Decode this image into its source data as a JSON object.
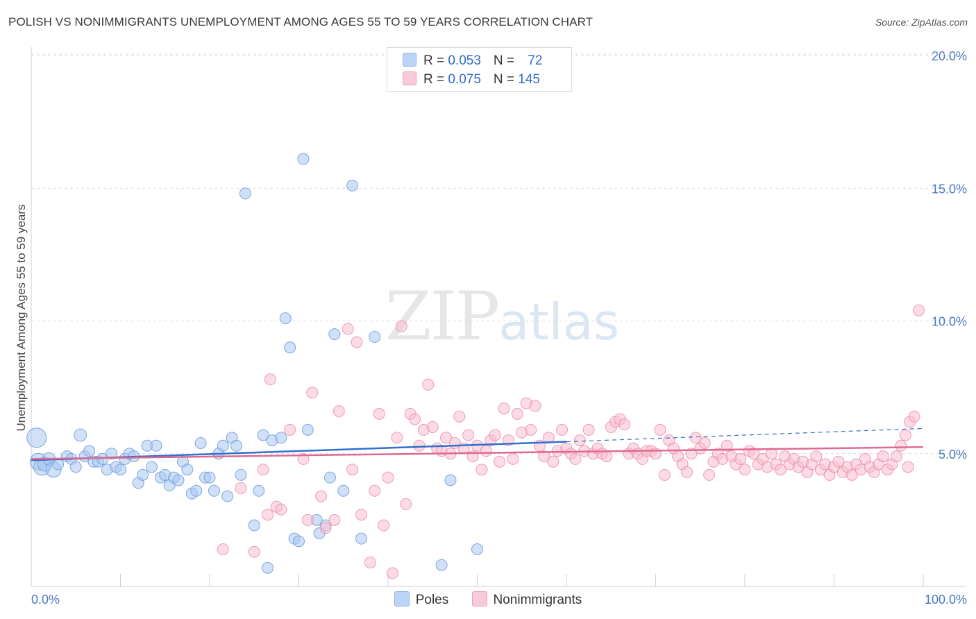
{
  "title": "POLISH VS NONIMMIGRANTS UNEMPLOYMENT AMONG AGES 55 TO 59 YEARS CORRELATION CHART",
  "source": "Source: ZipAtlas.com",
  "watermark": {
    "zip": "ZIP",
    "atlas": "atlas"
  },
  "legend": {
    "rows": [
      {
        "r_label": "R = ",
        "r_value": "0.053",
        "n_label": "N = ",
        "n_value": "72",
        "color": "#9dc0ef"
      },
      {
        "r_label": "R = ",
        "r_value": "0.075",
        "n_label": "N = ",
        "n_value": "145",
        "color": "#f4a9c0"
      }
    ]
  },
  "bottom_legend": [
    {
      "label": "Poles",
      "color": "#9dc0ef"
    },
    {
      "label": "Nonimmigrants",
      "color": "#f4a9c0"
    }
  ],
  "chart_data": {
    "type": "scatter",
    "ylabel": "Unemployment Among Ages 55 to 59 years",
    "xlabel": "",
    "x_tick_labels": [
      "0.0%",
      "100.0%"
    ],
    "y_tick_labels": [
      "5.0%",
      "10.0%",
      "15.0%",
      "20.0%"
    ],
    "y_ticks": [
      5,
      10,
      15,
      20
    ],
    "xlim": [
      0,
      100
    ],
    "ylim": [
      0,
      20.5
    ],
    "series": [
      {
        "name": "Poles",
        "color": "#6f9fe0",
        "fill": "#a9c7f1",
        "trend": {
          "x0": 0,
          "y0": 4.75,
          "x1": 60,
          "y1": 5.45,
          "dash_to_x": 100,
          "dash_to_y": 5.95,
          "color": "#2f6fd0"
        },
        "points": [
          [
            0.6,
            5.6,
            14
          ],
          [
            0.8,
            4.7,
            12
          ],
          [
            1.2,
            4.5,
            12
          ],
          [
            1.5,
            4.6,
            10
          ],
          [
            2,
            4.8,
            9
          ],
          [
            2.5,
            4.4,
            11
          ],
          [
            3,
            4.6,
            8
          ],
          [
            4,
            4.9,
            8
          ],
          [
            4.5,
            4.8,
            8
          ],
          [
            5,
            4.5,
            8
          ],
          [
            5.5,
            5.7,
            9
          ],
          [
            6,
            4.9,
            8
          ],
          [
            6.5,
            5.1,
            8
          ],
          [
            7,
            4.7,
            8
          ],
          [
            7.5,
            4.7,
            8
          ],
          [
            8,
            4.8,
            8
          ],
          [
            8.5,
            4.4,
            8
          ],
          [
            9,
            5.0,
            8
          ],
          [
            9.5,
            4.5,
            8
          ],
          [
            10,
            4.4,
            8
          ],
          [
            10.5,
            4.8,
            8
          ],
          [
            11,
            5.0,
            8
          ],
          [
            11.5,
            4.9,
            8
          ],
          [
            12,
            3.9,
            8
          ],
          [
            12.5,
            4.2,
            8
          ],
          [
            13,
            5.3,
            8
          ],
          [
            13.5,
            4.5,
            8
          ],
          [
            14,
            5.3,
            8
          ],
          [
            14.5,
            4.1,
            8
          ],
          [
            15,
            4.2,
            8
          ],
          [
            15.5,
            3.8,
            8
          ],
          [
            16,
            4.1,
            8
          ],
          [
            16.5,
            4.0,
            8
          ],
          [
            17,
            4.7,
            8
          ],
          [
            17.5,
            4.4,
            8
          ],
          [
            18,
            3.5,
            8
          ],
          [
            18.5,
            3.6,
            8
          ],
          [
            19,
            5.4,
            8
          ],
          [
            19.5,
            4.1,
            8
          ],
          [
            20,
            4.1,
            8
          ],
          [
            20.5,
            3.6,
            8
          ],
          [
            21,
            5.0,
            8
          ],
          [
            21.5,
            5.3,
            8
          ],
          [
            22,
            3.4,
            8
          ],
          [
            22.5,
            5.6,
            8
          ],
          [
            23,
            5.3,
            8
          ],
          [
            23.5,
            4.2,
            8
          ],
          [
            24,
            14.8,
            8
          ],
          [
            25,
            2.3,
            8
          ],
          [
            25.5,
            3.6,
            8
          ],
          [
            26,
            5.7,
            8
          ],
          [
            26.5,
            0.7,
            8
          ],
          [
            27,
            5.5,
            8
          ],
          [
            28,
            5.6,
            8
          ],
          [
            28.5,
            10.1,
            8
          ],
          [
            29,
            9.0,
            8
          ],
          [
            29.5,
            1.8,
            8
          ],
          [
            30,
            1.7,
            8
          ],
          [
            30.5,
            16.1,
            8
          ],
          [
            31,
            5.9,
            8
          ],
          [
            32,
            2.5,
            8
          ],
          [
            32.3,
            2.0,
            8
          ],
          [
            33,
            2.3,
            8
          ],
          [
            33.5,
            4.1,
            8
          ],
          [
            34,
            9.5,
            8
          ],
          [
            35,
            3.6,
            8
          ],
          [
            36,
            15.1,
            8
          ],
          [
            37,
            1.8,
            8
          ],
          [
            38.5,
            9.4,
            8
          ],
          [
            46,
            0.8,
            8
          ],
          [
            47,
            4.0,
            8
          ],
          [
            50,
            1.4,
            8
          ]
        ]
      },
      {
        "name": "Nonimmigrants",
        "color": "#ee8fae",
        "fill": "#f7bfd0",
        "trend": {
          "x0": 0,
          "y0": 4.8,
          "x1": 100,
          "y1": 5.25,
          "color": "#e0698f"
        },
        "points": [
          [
            21.5,
            1.4,
            8
          ],
          [
            23.5,
            3.7,
            8
          ],
          [
            25,
            1.3,
            8
          ],
          [
            26,
            4.4,
            8
          ],
          [
            26.5,
            2.7,
            8
          ],
          [
            26.8,
            7.8,
            8
          ],
          [
            27.5,
            3.0,
            8
          ],
          [
            28,
            2.9,
            8
          ],
          [
            29,
            5.9,
            8
          ],
          [
            30.5,
            4.8,
            8
          ],
          [
            31,
            2.5,
            8
          ],
          [
            31.5,
            7.3,
            8
          ],
          [
            32.5,
            3.4,
            8
          ],
          [
            33,
            2.2,
            8
          ],
          [
            34,
            2.5,
            8
          ],
          [
            34.5,
            6.6,
            8
          ],
          [
            35.5,
            9.7,
            8
          ],
          [
            36,
            4.4,
            8
          ],
          [
            36.5,
            9.2,
            8
          ],
          [
            37,
            2.7,
            8
          ],
          [
            38,
            0.9,
            8
          ],
          [
            38.5,
            3.6,
            8
          ],
          [
            39,
            6.5,
            8
          ],
          [
            39.5,
            2.3,
            8
          ],
          [
            40,
            4.1,
            8
          ],
          [
            40.5,
            0.5,
            8
          ],
          [
            41,
            5.6,
            8
          ],
          [
            41.5,
            9.8,
            8
          ],
          [
            42,
            3.1,
            8
          ],
          [
            42.5,
            6.5,
            8
          ],
          [
            43,
            6.3,
            8
          ],
          [
            43.5,
            5.3,
            8
          ],
          [
            44,
            5.9,
            8
          ],
          [
            44.5,
            7.6,
            8
          ],
          [
            45,
            6.0,
            8
          ],
          [
            45.5,
            5.2,
            8
          ],
          [
            46,
            5.1,
            8
          ],
          [
            46.5,
            5.6,
            8
          ],
          [
            47,
            5.0,
            8
          ],
          [
            47.5,
            5.4,
            8
          ],
          [
            48,
            6.4,
            8
          ],
          [
            48.5,
            5.2,
            8
          ],
          [
            49,
            5.7,
            8
          ],
          [
            49.5,
            4.9,
            8
          ],
          [
            50,
            5.3,
            8
          ],
          [
            50.5,
            4.4,
            8
          ],
          [
            51,
            5.1,
            8
          ],
          [
            51.5,
            5.5,
            8
          ],
          [
            52,
            5.7,
            8
          ],
          [
            52.5,
            4.7,
            8
          ],
          [
            53,
            6.7,
            8
          ],
          [
            53.5,
            5.5,
            8
          ],
          [
            54,
            4.8,
            8
          ],
          [
            54.5,
            6.5,
            8
          ],
          [
            55,
            5.8,
            8
          ],
          [
            55.5,
            6.9,
            8
          ],
          [
            56,
            5.9,
            8
          ],
          [
            56.5,
            6.8,
            8
          ],
          [
            57,
            5.3,
            8
          ],
          [
            57.5,
            4.9,
            8
          ],
          [
            58,
            5.6,
            8
          ],
          [
            58.5,
            4.7,
            8
          ],
          [
            59,
            5.1,
            8
          ],
          [
            59.5,
            5.9,
            8
          ],
          [
            60,
            5.2,
            8
          ],
          [
            60.5,
            5.0,
            8
          ],
          [
            61,
            4.8,
            8
          ],
          [
            61.5,
            5.5,
            8
          ],
          [
            62,
            5.1,
            8
          ],
          [
            62.5,
            5.9,
            8
          ],
          [
            63,
            5.0,
            8
          ],
          [
            63.5,
            5.2,
            8
          ],
          [
            64,
            5.0,
            8
          ],
          [
            64.5,
            4.9,
            8
          ],
          [
            65,
            6.0,
            8
          ],
          [
            65.5,
            6.2,
            8
          ],
          [
            66,
            6.3,
            8
          ],
          [
            66.5,
            6.1,
            8
          ],
          [
            67,
            5.0,
            8
          ],
          [
            67.5,
            5.2,
            8
          ],
          [
            68,
            5.0,
            8
          ],
          [
            68.5,
            4.8,
            8
          ],
          [
            69,
            5.1,
            8
          ],
          [
            69.5,
            5.1,
            8
          ],
          [
            70,
            5.0,
            8
          ],
          [
            70.5,
            5.9,
            8
          ],
          [
            71,
            4.2,
            8
          ],
          [
            71.5,
            5.5,
            8
          ],
          [
            72,
            5.2,
            8
          ],
          [
            72.5,
            4.9,
            8
          ],
          [
            73,
            4.6,
            8
          ],
          [
            73.5,
            4.3,
            8
          ],
          [
            74,
            5.0,
            8
          ],
          [
            74.5,
            5.6,
            8
          ],
          [
            75,
            5.2,
            8
          ],
          [
            75.5,
            5.4,
            8
          ],
          [
            76,
            4.2,
            8
          ],
          [
            76.5,
            4.7,
            8
          ],
          [
            77,
            5.0,
            8
          ],
          [
            77.5,
            4.8,
            8
          ],
          [
            78,
            5.3,
            8
          ],
          [
            78.5,
            4.9,
            8
          ],
          [
            79,
            4.6,
            8
          ],
          [
            79.5,
            4.8,
            8
          ],
          [
            80,
            4.4,
            8
          ],
          [
            80.5,
            5.1,
            8
          ],
          [
            81,
            5.0,
            8
          ],
          [
            81.5,
            4.6,
            8
          ],
          [
            82,
            4.8,
            8
          ],
          [
            82.5,
            4.5,
            8
          ],
          [
            83,
            5.0,
            8
          ],
          [
            83.5,
            4.6,
            8
          ],
          [
            84,
            4.4,
            8
          ],
          [
            84.5,
            4.9,
            8
          ],
          [
            85,
            4.6,
            8
          ],
          [
            85.5,
            4.8,
            8
          ],
          [
            86,
            4.5,
            8
          ],
          [
            86.5,
            4.7,
            8
          ],
          [
            87,
            4.3,
            8
          ],
          [
            87.5,
            4.6,
            8
          ],
          [
            88,
            4.9,
            8
          ],
          [
            88.5,
            4.4,
            8
          ],
          [
            89,
            4.6,
            8
          ],
          [
            89.5,
            4.2,
            8
          ],
          [
            90,
            4.5,
            8
          ],
          [
            90.5,
            4.7,
            8
          ],
          [
            91,
            4.3,
            8
          ],
          [
            91.5,
            4.5,
            8
          ],
          [
            92,
            4.2,
            8
          ],
          [
            92.5,
            4.6,
            8
          ],
          [
            93,
            4.4,
            8
          ],
          [
            93.5,
            4.8,
            8
          ],
          [
            94,
            4.5,
            8
          ],
          [
            94.5,
            4.3,
            8
          ],
          [
            95,
            4.6,
            8
          ],
          [
            95.5,
            4.9,
            8
          ],
          [
            96,
            4.4,
            8
          ],
          [
            96.5,
            4.6,
            8
          ],
          [
            97,
            4.9,
            8
          ],
          [
            97.5,
            5.3,
            8
          ],
          [
            98,
            5.7,
            8
          ],
          [
            98.5,
            6.2,
            8
          ],
          [
            99,
            6.4,
            8
          ],
          [
            99.5,
            10.4,
            8
          ],
          [
            98.3,
            4.5,
            8
          ]
        ]
      }
    ]
  }
}
